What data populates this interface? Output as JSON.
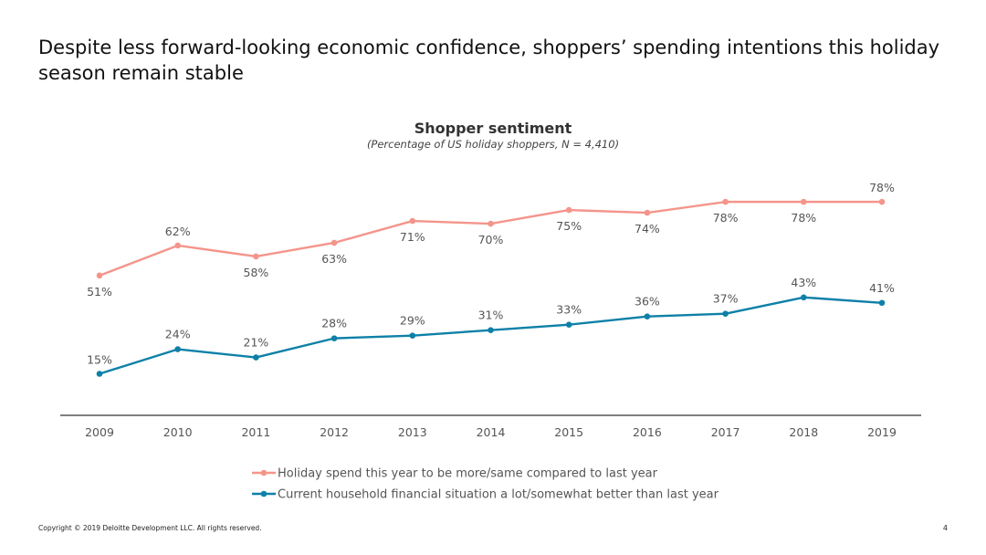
{
  "headline": "Despite less forward-looking economic confidence, shoppers’ spending intentions this holiday season remain stable",
  "footer": {
    "copyright": "Copyright © 2019 Deloitte Development LLC. All rights reserved.",
    "page": "4"
  },
  "colors": {
    "series1": "#f4958b",
    "series2": "#0e80a8",
    "axis": "#333333",
    "label": "#555555"
  },
  "chart_data": {
    "type": "line",
    "title": "Shopper sentiment",
    "subtitle": "(Percentage of US holiday shoppers, N = 4,410)",
    "categories": [
      "2009",
      "2010",
      "2011",
      "2012",
      "2013",
      "2014",
      "2015",
      "2016",
      "2017",
      "2018",
      "2019"
    ],
    "ylim": [
      0,
      100
    ],
    "series": [
      {
        "name": "Holiday spend this year to be more/same compared to last year",
        "values": [
          51,
          62,
          58,
          63,
          71,
          70,
          75,
          74,
          78,
          78,
          78
        ],
        "labels": [
          "51%",
          "62%",
          "58%",
          "63%",
          "71%",
          "70%",
          "75%",
          "74%",
          "78%",
          "78%",
          "78%"
        ]
      },
      {
        "name": "Current household financial situation a lot/somewhat better than last year",
        "values": [
          15,
          24,
          21,
          28,
          29,
          31,
          33,
          36,
          37,
          43,
          41
        ],
        "labels": [
          "15%",
          "24%",
          "21%",
          "28%",
          "29%",
          "31%",
          "33%",
          "36%",
          "37%",
          "43%",
          "41%"
        ]
      }
    ],
    "legend_position": "bottom"
  }
}
